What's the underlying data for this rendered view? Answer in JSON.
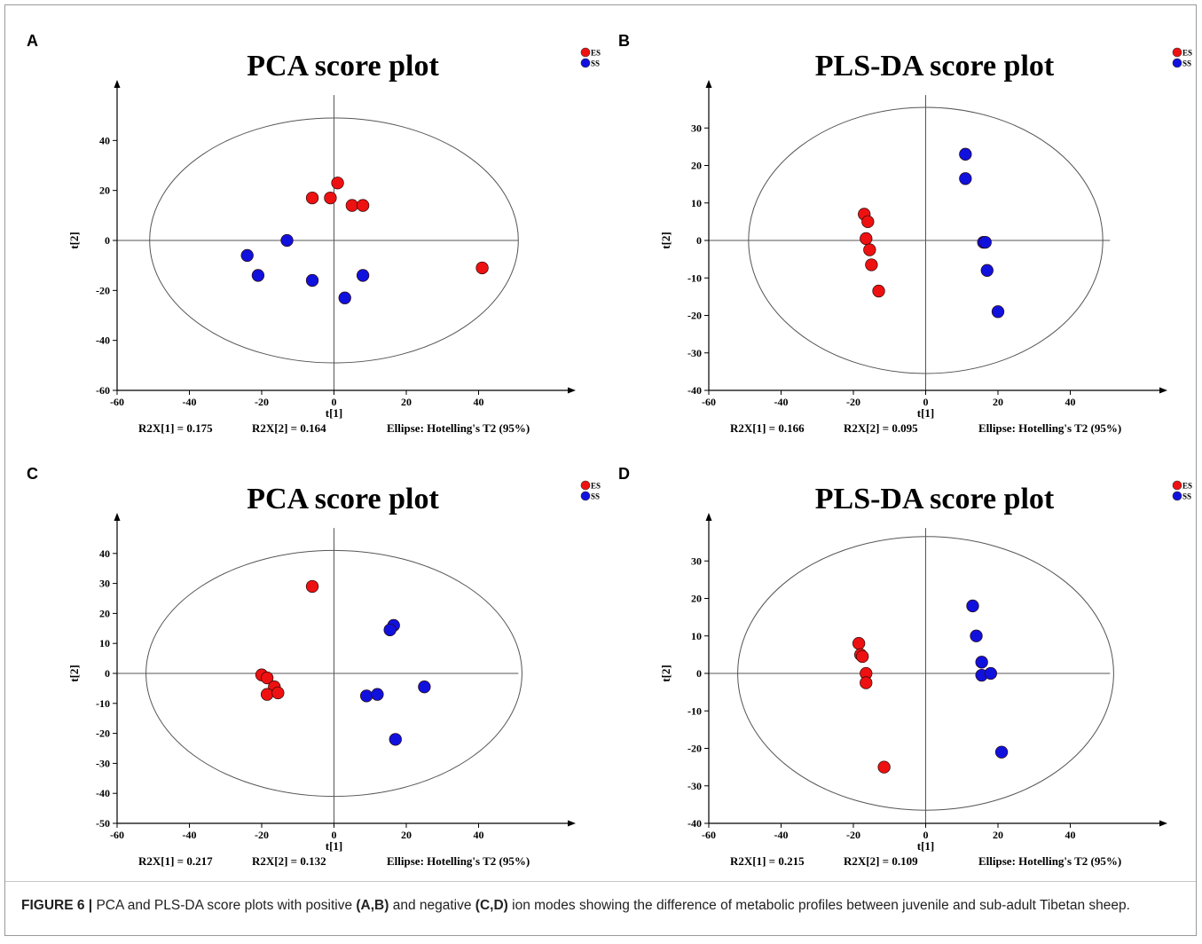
{
  "figure": {
    "caption_label": "FIGURE 6 |",
    "caption_parts": [
      {
        "text": " PCA and PLS-DA score plots with positive ",
        "bold": false
      },
      {
        "text": "(A,B)",
        "bold": true
      },
      {
        "text": " and negative ",
        "bold": false
      },
      {
        "text": "(C,D)",
        "bold": true
      },
      {
        "text": " ion modes showing the difference of metabolic profiles between juvenile and sub-adult Tibetan sheep.",
        "bold": false
      }
    ],
    "colors": {
      "ES": "#ee1111",
      "SS": "#1111dd"
    }
  },
  "chart_data": [
    {
      "panel": "A",
      "type": "scatter",
      "title": "PCA score plot",
      "xlabel": "t[1]",
      "ylabel": "t[2]",
      "xlim": [
        -60,
        60
      ],
      "ylim": [
        -60,
        60
      ],
      "xticks": [
        -60,
        -40,
        -20,
        0,
        20,
        40
      ],
      "yticks": [
        -60,
        -40,
        -20,
        0,
        20,
        40
      ],
      "ellipse": {
        "rx": 51,
        "ry": 49
      },
      "legend_placement": "top-right",
      "footer": [
        "R2X[1] = 0.175",
        "R2X[2] = 0.164",
        "Ellipse: Hotelling's T2 (95%)"
      ],
      "series": [
        {
          "name": "ES",
          "color": "#ee1111",
          "points": [
            [
              -6,
              17
            ],
            [
              -1,
              17
            ],
            [
              1,
              23
            ],
            [
              5,
              14
            ],
            [
              8,
              14
            ],
            [
              41,
              -11
            ]
          ]
        },
        {
          "name": "SS",
          "color": "#1111dd",
          "points": [
            [
              -24,
              -6
            ],
            [
              -21,
              -14
            ],
            [
              -13,
              0
            ],
            [
              -6,
              -16
            ],
            [
              3,
              -23
            ],
            [
              8,
              -14
            ]
          ]
        }
      ]
    },
    {
      "panel": "B",
      "type": "scatter",
      "title": "PLS-DA score plot",
      "xlabel": "t[1]",
      "ylabel": "t[2]",
      "xlim": [
        -60,
        60
      ],
      "ylim": [
        -40,
        40
      ],
      "xticks": [
        -60,
        -40,
        -20,
        0,
        20,
        40
      ],
      "yticks": [
        -40,
        -30,
        -20,
        -10,
        0,
        10,
        20,
        30
      ],
      "ellipse": {
        "rx": 49,
        "ry": 35.5
      },
      "legend_placement": "top-right",
      "footer": [
        "R2X[1] = 0.166",
        "R2X[2] = 0.095",
        "Ellipse: Hotelling's T2 (95%)"
      ],
      "series": [
        {
          "name": "ES",
          "color": "#ee1111",
          "points": [
            [
              -17,
              7
            ],
            [
              -16,
              5
            ],
            [
              -16.5,
              0.5
            ],
            [
              -15.5,
              -2.5
            ],
            [
              -15,
              -6.5
            ],
            [
              -13,
              -13.5
            ]
          ]
        },
        {
          "name": "SS",
          "color": "#1111dd",
          "points": [
            [
              11,
              23
            ],
            [
              11,
              16.5
            ],
            [
              16,
              -0.5
            ],
            [
              16.5,
              -0.5
            ],
            [
              17,
              -8
            ],
            [
              20,
              -19
            ]
          ]
        }
      ]
    },
    {
      "panel": "C",
      "type": "scatter",
      "title": "PCA score plot",
      "xlabel": "t[1]",
      "ylabel": "t[2]",
      "xlim": [
        -60,
        60
      ],
      "ylim": [
        -50,
        50
      ],
      "xticks": [
        -60,
        -40,
        -20,
        0,
        20,
        40
      ],
      "yticks": [
        -50,
        -40,
        -30,
        -20,
        -10,
        0,
        10,
        20,
        30,
        40
      ],
      "ellipse": {
        "rx": 52,
        "ry": 41
      },
      "legend_placement": "top-right",
      "footer": [
        "R2X[1] = 0.217",
        "R2X[2] = 0.132",
        "Ellipse: Hotelling's T2 (95%)"
      ],
      "series": [
        {
          "name": "ES",
          "color": "#ee1111",
          "points": [
            [
              -6,
              29
            ],
            [
              -20,
              -0.5
            ],
            [
              -18.5,
              -1.5
            ],
            [
              -16.5,
              -4.5
            ],
            [
              -18.5,
              -7
            ],
            [
              -15.5,
              -6.5
            ]
          ]
        },
        {
          "name": "SS",
          "color": "#1111dd",
          "points": [
            [
              16.5,
              16
            ],
            [
              15.5,
              14.5
            ],
            [
              9,
              -7.5
            ],
            [
              12,
              -7
            ],
            [
              25,
              -4.5
            ],
            [
              17,
              -22
            ]
          ]
        }
      ]
    },
    {
      "panel": "D",
      "type": "scatter",
      "title": "PLS-DA score plot",
      "xlabel": "t[1]",
      "ylabel": "t[2]",
      "xlim": [
        -60,
        60
      ],
      "ylim": [
        -40,
        40
      ],
      "xticks": [
        -60,
        -40,
        -20,
        0,
        20,
        40
      ],
      "yticks": [
        -40,
        -30,
        -20,
        -10,
        0,
        10,
        20,
        30
      ],
      "ellipse": {
        "rx": 52,
        "ry": 36.5
      },
      "legend_placement": "top-right",
      "footer": [
        "R2X[1] = 0.215",
        "R2X[2] = 0.109",
        "Ellipse: Hotelling's T2 (95%)"
      ],
      "series": [
        {
          "name": "ES",
          "color": "#ee1111",
          "points": [
            [
              -18.5,
              8
            ],
            [
              -18,
              5
            ],
            [
              -17.5,
              4.5
            ],
            [
              -16.5,
              0
            ],
            [
              -16.5,
              -2.5
            ],
            [
              -11.5,
              -25
            ]
          ]
        },
        {
          "name": "SS",
          "color": "#1111dd",
          "points": [
            [
              13,
              18
            ],
            [
              14,
              10
            ],
            [
              15.5,
              3
            ],
            [
              15.5,
              -0.5
            ],
            [
              18,
              0
            ],
            [
              21,
              -21
            ]
          ]
        }
      ]
    }
  ]
}
